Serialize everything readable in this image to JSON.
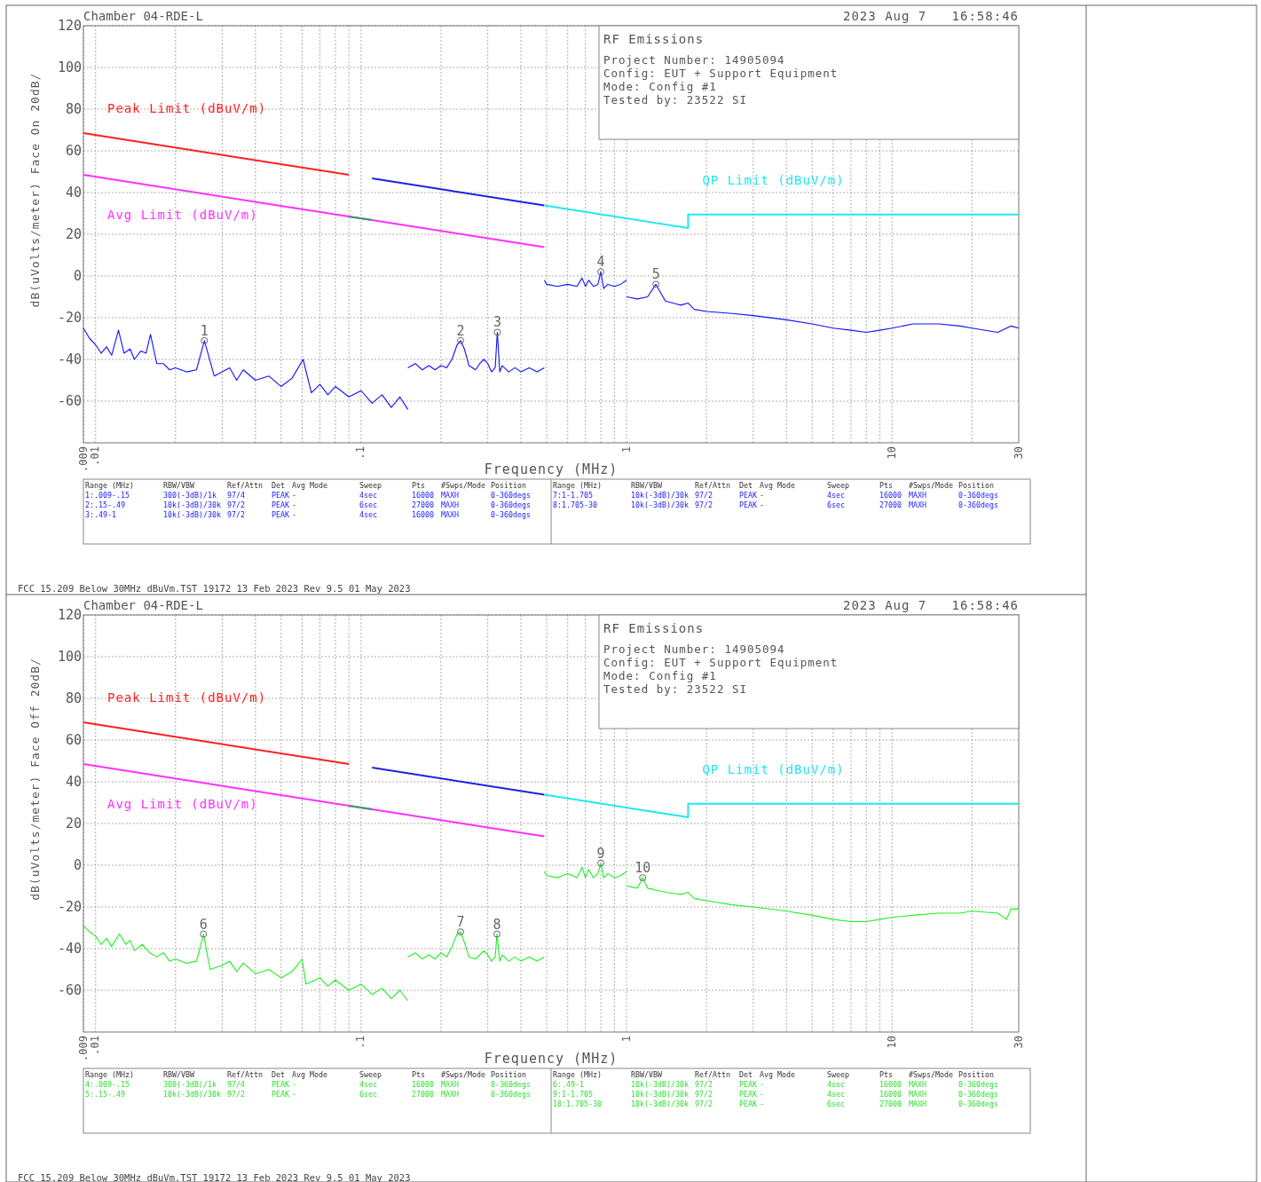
{
  "chart_data": [
    {
      "type": "line",
      "title": "Chamber 04-RDE-L",
      "subtitle": "2023 Aug 7   16:58:46",
      "xlabel": "Frequency (MHz)",
      "ylabel": "dB(uVolts/meter) Face On 20dB/",
      "log": "x",
      "grid": true,
      "xlim": [
        0.009,
        30
      ],
      "xticks": [
        {
          "value": 0.009,
          "label": ".009"
        },
        {
          "value": 0.01,
          "label": ".01"
        },
        {
          "value": 0.1,
          "label": ".1"
        },
        1,
        10,
        30
      ],
      "ylim": [
        -80,
        120
      ],
      "yticks": [
        -60,
        -40,
        -20,
        0,
        20,
        40,
        60,
        80,
        100,
        120
      ],
      "series": [
        {
          "name": "Peak Limit (dBuV/m)",
          "color": "#ff2020",
          "x": [
            0.009,
            0.09
          ],
          "values": [
            68.5,
            48.5
          ]
        },
        {
          "color": "#2020e0",
          "x": [
            0.11,
            0.49
          ],
          "values": [
            46.8,
            33.8
          ]
        },
        {
          "name": "QP Limit (dBuV/m)",
          "color": "#20e8f0",
          "x": [
            0.49,
            1.705,
            1.705,
            30
          ],
          "values": [
            33.8,
            23,
            29.5,
            29.5
          ]
        },
        {
          "name": "Avg Limit (dBuV/m)",
          "color": "#ff30ff",
          "x": [
            0.009,
            0.09,
            0.11,
            0.49
          ],
          "values": [
            48.5,
            28.5,
            26.8,
            13.8
          ]
        },
        {
          "color": "#30a070",
          "x": [
            0.09,
            0.11
          ],
          "values": [
            28.5,
            26.8
          ]
        },
        {
          "color": "#1010ff",
          "x": [
            0.009,
            0.0095,
            0.01,
            0.0105,
            0.011,
            0.0115,
            0.0122,
            0.0128,
            0.0135,
            0.014,
            0.0148,
            0.0155,
            0.0161,
            0.017,
            0.018,
            0.019,
            0.02,
            0.022,
            0.024,
            0.0257,
            0.028,
            0.03,
            0.032,
            0.034,
            0.036,
            0.04,
            0.045,
            0.05,
            0.055,
            0.0605,
            0.065,
            0.07,
            0.075,
            0.08,
            0.09,
            0.1,
            0.11,
            0.12,
            0.13,
            0.14,
            0.15
          ],
          "values": [
            -25,
            -30,
            -33,
            -37,
            -34,
            -38,
            -26,
            -37,
            -35,
            -40,
            -36,
            -37,
            -28,
            -42,
            -42,
            -45,
            -44,
            -46,
            -45,
            -31,
            -48,
            -46,
            -44,
            -50,
            -45,
            -50,
            -48,
            -53,
            -49,
            -40,
            -56,
            -52,
            -57,
            -53,
            -58,
            -55,
            -61,
            -57,
            -63,
            -58,
            -64
          ]
        },
        {
          "color": "#1010ff",
          "x": [
            0.15,
            0.16,
            0.17,
            0.18,
            0.19,
            0.2,
            0.21,
            0.22,
            0.23,
            0.237,
            0.245,
            0.255,
            0.27,
            0.28,
            0.29,
            0.3,
            0.31,
            0.32,
            0.326,
            0.333,
            0.34,
            0.36,
            0.38,
            0.4,
            0.43,
            0.46,
            0.49
          ],
          "values": [
            -44,
            -42,
            -45,
            -43,
            -45,
            -43,
            -44,
            -40,
            -33,
            -31,
            -35,
            -43,
            -45,
            -42,
            -40,
            -42,
            -46,
            -44,
            -27,
            -46,
            -43,
            -46,
            -44,
            -46,
            -44,
            -46,
            -44
          ]
        },
        {
          "color": "#1010ff",
          "x": [
            0.49,
            0.5,
            0.55,
            0.6,
            0.65,
            0.68,
            0.7,
            0.72,
            0.75,
            0.78,
            0.8,
            0.82,
            0.85,
            0.9,
            0.95,
            1
          ],
          "values": [
            -2,
            -4,
            -5,
            -4,
            -5,
            -1,
            -5,
            -2,
            -5,
            -4,
            2,
            -6,
            -4,
            -5,
            -4,
            -2
          ]
        },
        {
          "color": "#1010ff",
          "x": [
            1,
            1.1,
            1.2,
            1.29,
            1.4,
            1.6,
            1.705,
            1.8,
            2,
            2.5,
            3,
            4,
            5,
            6,
            7,
            8,
            9,
            10,
            12,
            15,
            18,
            20,
            25,
            28,
            30
          ],
          "values": [
            -10,
            -11,
            -10,
            -4,
            -12,
            -14,
            -13,
            -16,
            -17,
            -18,
            -19,
            -21,
            -23,
            -25,
            -26,
            -27,
            -26,
            -25,
            -23,
            -23,
            -24,
            -25,
            -27,
            -24,
            -25
          ]
        }
      ],
      "annotations": [
        "RF Emissions",
        "Project Number: 14905094",
        "Config: EUT + Support Equipment",
        "Mode: Config #1",
        "Tested by: 23522 SI",
        {
          "text": "1",
          "x": 0.0257,
          "y": -31
        },
        {
          "text": "2",
          "x": 0.237,
          "y": -31
        },
        {
          "text": "3",
          "x": 0.326,
          "y": -27
        },
        {
          "text": "4",
          "x": 0.8,
          "y": 2
        },
        {
          "text": "5",
          "x": 1.29,
          "y": -4
        }
      ]
    },
    {
      "type": "other",
      "color": "#2020ff",
      "annotations": [
        "Range (MHz)",
        "RBW/VBW",
        "Ref/Attn",
        "Det",
        "Avg Mode",
        "Sweep",
        "Pts",
        "#Swps/Mode",
        "Position",
        "1:.009-.15",
        "300(-3dB)/1k",
        "97/4",
        "PEAK",
        "-",
        "4sec",
        "16000",
        "MAXH",
        "0-360degs",
        "2:.15-.49",
        "10k(-3dB)/30k",
        "97/2",
        "PEAK",
        "-",
        "6sec",
        "27000",
        "MAXH",
        "0-360degs",
        "3:.49-1",
        "10k(-3dB)/30k",
        "97/2",
        "PEAK",
        "-",
        "4sec",
        "16000",
        "MAXH",
        "0-360degs"
      ]
    },
    {
      "type": "other",
      "color": "#2020ff",
      "annotations": [
        "Range (MHz)",
        "RBW/VBW",
        "Ref/Attn",
        "Det",
        "Avg Mode",
        "Sweep",
        "Pts",
        "#Swps/Mode",
        "Position",
        "7:1-1.705",
        "10k(-3dB)/30k",
        "97/2",
        "PEAK",
        "-",
        "4sec",
        "16000",
        "MAXH",
        "0-360degs",
        "8:1.705-30",
        "10k(-3dB)/30k",
        "97/2",
        "PEAK",
        "-",
        "6sec",
        "27000",
        "MAXH",
        "0-360degs"
      ]
    },
    {
      "type": "other",
      "annotations": [
        "FCC 15.209 Below 30MHz dBuVm.TST 19172 13 Feb 2023 Rev 9.5 01 May 2023"
      ]
    },
    {
      "type": "line",
      "title": "Chamber 04-RDE-L",
      "subtitle": "2023 Aug 7   16:58:46",
      "xlabel": "Frequency (MHz)",
      "ylabel": "dB(uVolts/meter) Face Off 20dB/",
      "log": "x",
      "grid": true,
      "xlim": [
        0.009,
        30
      ],
      "xticks": [
        {
          "value": 0.009,
          "label": ".009"
        },
        {
          "value": 0.01,
          "label": ".01"
        },
        {
          "value": 0.1,
          "label": ".1"
        },
        1,
        10,
        30
      ],
      "ylim": [
        -80,
        120
      ],
      "yticks": [
        -60,
        -40,
        -20,
        0,
        20,
        40,
        60,
        80,
        100,
        120
      ],
      "series": [
        {
          "name": "Peak Limit (dBuV/m)",
          "color": "#ff2020",
          "x": [
            0.009,
            0.09
          ],
          "values": [
            68.5,
            48.5
          ]
        },
        {
          "color": "#2020e0",
          "x": [
            0.11,
            0.49
          ],
          "values": [
            46.8,
            33.8
          ]
        },
        {
          "name": "QP Limit (dBuV/m)",
          "color": "#20e8f0",
          "x": [
            0.49,
            1.705,
            1.705,
            30
          ],
          "values": [
            33.8,
            23,
            29.5,
            29.5
          ]
        },
        {
          "name": "Avg Limit (dBuV/m)",
          "color": "#ff30ff",
          "x": [
            0.009,
            0.09,
            0.11,
            0.49
          ],
          "values": [
            48.5,
            28.5,
            26.8,
            13.8
          ]
        },
        {
          "color": "#30a070",
          "x": [
            0.09,
            0.11
          ],
          "values": [
            28.5,
            26.8
          ]
        },
        {
          "color": "#20f020",
          "x": [
            0.009,
            0.0095,
            0.01,
            0.0105,
            0.011,
            0.0115,
            0.0123,
            0.013,
            0.0135,
            0.014,
            0.015,
            0.016,
            0.017,
            0.018,
            0.019,
            0.02,
            0.022,
            0.024,
            0.0255,
            0.027,
            0.03,
            0.032,
            0.034,
            0.036,
            0.04,
            0.045,
            0.05,
            0.055,
            0.06,
            0.062,
            0.07,
            0.075,
            0.08,
            0.09,
            0.1,
            0.11,
            0.12,
            0.13,
            0.14,
            0.15
          ],
          "values": [
            -29,
            -32,
            -34,
            -38,
            -35,
            -39,
            -33,
            -38,
            -36,
            -41,
            -38,
            -42,
            -44,
            -42,
            -46,
            -45,
            -47,
            -46,
            -33,
            -50,
            -48,
            -46,
            -51,
            -47,
            -52,
            -50,
            -54,
            -51,
            -45,
            -57,
            -54,
            -58,
            -55,
            -60,
            -57,
            -62,
            -59,
            -64,
            -60,
            -65
          ]
        },
        {
          "color": "#20f020",
          "x": [
            0.15,
            0.16,
            0.17,
            0.18,
            0.19,
            0.2,
            0.21,
            0.22,
            0.23,
            0.237,
            0.245,
            0.255,
            0.27,
            0.28,
            0.29,
            0.3,
            0.31,
            0.32,
            0.325,
            0.333,
            0.34,
            0.36,
            0.38,
            0.4,
            0.43,
            0.46,
            0.49
          ],
          "values": [
            -44,
            -42,
            -45,
            -43,
            -45,
            -42,
            -44,
            -39,
            -33,
            -32,
            -37,
            -44,
            -45,
            -43,
            -41,
            -43,
            -46,
            -44,
            -33,
            -46,
            -43,
            -46,
            -44,
            -46,
            -44,
            -46,
            -44
          ]
        },
        {
          "color": "#20f020",
          "x": [
            0.49,
            0.5,
            0.55,
            0.6,
            0.65,
            0.68,
            0.7,
            0.72,
            0.75,
            0.78,
            0.8,
            0.82,
            0.85,
            0.9,
            0.95,
            1
          ],
          "values": [
            -3,
            -5,
            -6,
            -4,
            -6,
            -1,
            -6,
            -2,
            -6,
            -4,
            1,
            -6,
            -4,
            -6,
            -5,
            -3
          ]
        },
        {
          "color": "#20f020",
          "x": [
            1,
            1.1,
            1.15,
            1.2,
            1.3,
            1.4,
            1.6,
            1.705,
            1.8,
            2,
            2.5,
            3,
            4,
            5,
            6,
            7,
            8,
            9,
            10,
            12,
            15,
            18,
            20,
            25,
            27,
            28,
            30
          ],
          "values": [
            -10,
            -11,
            -6,
            -11,
            -12,
            -13,
            -14,
            -13,
            -16,
            -17,
            -19,
            -20,
            -22,
            -24,
            -26,
            -27,
            -27,
            -26,
            -25,
            -24,
            -23,
            -23,
            -22,
            -23,
            -26,
            -21,
            -21
          ]
        }
      ],
      "annotations": [
        "RF Emissions",
        "Project Number: 14905094",
        "Config: EUT + Support Equipment",
        "Mode: Config #1",
        "Tested by: 23522 SI",
        {
          "text": "6",
          "x": 0.0255,
          "y": -33
        },
        {
          "text": "7",
          "x": 0.237,
          "y": -32
        },
        {
          "text": "8",
          "x": 0.325,
          "y": -33
        },
        {
          "text": "9",
          "x": 0.8,
          "y": 1
        },
        {
          "text": "10",
          "x": 1.15,
          "y": -6
        }
      ]
    },
    {
      "type": "other",
      "color": "#30e030",
      "annotations": [
        "Range (MHz)",
        "RBW/VBW",
        "Ref/Attn",
        "Det",
        "Avg Mode",
        "Sweep",
        "Pts",
        "#Swps/Mode",
        "Position",
        "4:.009-.15",
        "300(-3dB)/1k",
        "97/4",
        "PEAK",
        "-",
        "4sec",
        "16000",
        "MAXH",
        "0-360degs",
        "5:.15-.49",
        "10k(-3dB)/30k",
        "97/2",
        "PEAK",
        "-",
        "6sec",
        "27000",
        "MAXH",
        "0-360degs"
      ]
    },
    {
      "type": "other",
      "color": "#30e030",
      "annotations": [
        "Range (MHz)",
        "RBW/VBW",
        "Ref/Attn",
        "Det",
        "Avg Mode",
        "Sweep",
        "Pts",
        "#Swps/Mode",
        "Position",
        "6:.49-1",
        "10k(-3dB)/30k",
        "97/2",
        "PEAK",
        "-",
        "4sec",
        "16000",
        "MAXH",
        "0-360degs",
        "9:1-1.705",
        "10k(-3dB)/30k",
        "97/2",
        "PEAK",
        "-",
        "4sec",
        "16000",
        "MAXH",
        "0-360degs",
        "10:1.705-30",
        "10k(-3dB)/30k",
        "97/2",
        "PEAK",
        "-",
        "6sec",
        "27000",
        "MAXH",
        "0-360degs"
      ]
    },
    {
      "type": "other",
      "annotations": [
        "FCC 15.209 Below 30MHz dBuVm.TST 19172 13 Feb 2023 Rev 9.5 01 May 2023"
      ]
    }
  ]
}
